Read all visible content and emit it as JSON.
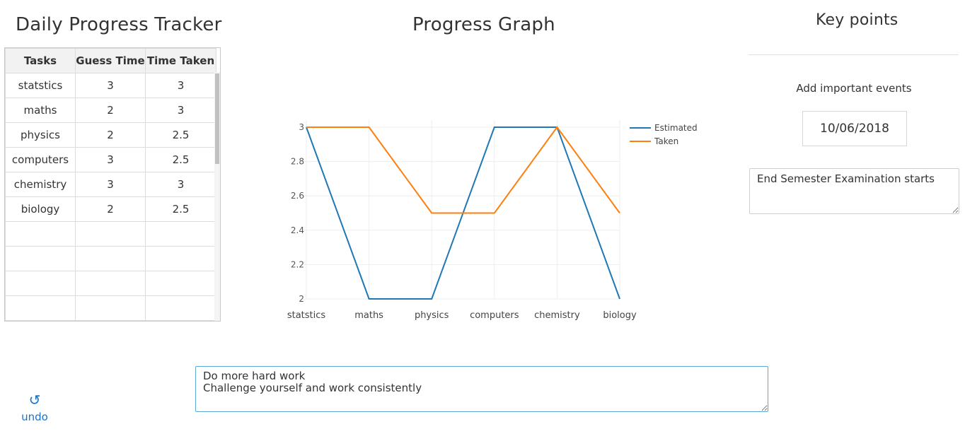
{
  "tracker": {
    "title": "Daily Progress Tracker",
    "columns": [
      "Tasks",
      "Guess Time",
      "Time Taken"
    ],
    "rows": [
      [
        "statstics",
        "3",
        "3"
      ],
      [
        "maths",
        "2",
        "3"
      ],
      [
        "physics",
        "2",
        "2.5"
      ],
      [
        "computers",
        "3",
        "2.5"
      ],
      [
        "chemistry",
        "3",
        "3"
      ],
      [
        "biology",
        "2",
        "2.5"
      ],
      [
        "",
        "",
        ""
      ],
      [
        "",
        "",
        ""
      ],
      [
        "",
        "",
        ""
      ],
      [
        "",
        "",
        ""
      ]
    ]
  },
  "graph": {
    "title": "Progress Graph"
  },
  "chart_data": {
    "type": "line",
    "categories": [
      "statstics",
      "maths",
      "physics",
      "computers",
      "chemistry",
      "biology"
    ],
    "series": [
      {
        "name": "Estimated",
        "values": [
          3,
          2,
          2,
          3,
          3,
          2
        ],
        "color": "#1f77b4"
      },
      {
        "name": "Taken",
        "values": [
          3,
          3,
          2.5,
          2.5,
          3,
          2.5
        ],
        "color": "#ff7f0e"
      }
    ],
    "yticks": [
      "2",
      "2.2",
      "2.4",
      "2.6",
      "2.8",
      "3"
    ],
    "ylim": [
      2,
      3
    ],
    "grid": true,
    "legend": "top-right"
  },
  "key_points": {
    "title": "Key points",
    "add_label": "Add important events",
    "date_value": "10/06/2018",
    "event_text": "End Semester Examination starts"
  },
  "notes": {
    "text": "Do more hard work\nChallenge yourself and work consistently"
  },
  "undo": {
    "icon": "undo-icon",
    "label": "undo"
  }
}
